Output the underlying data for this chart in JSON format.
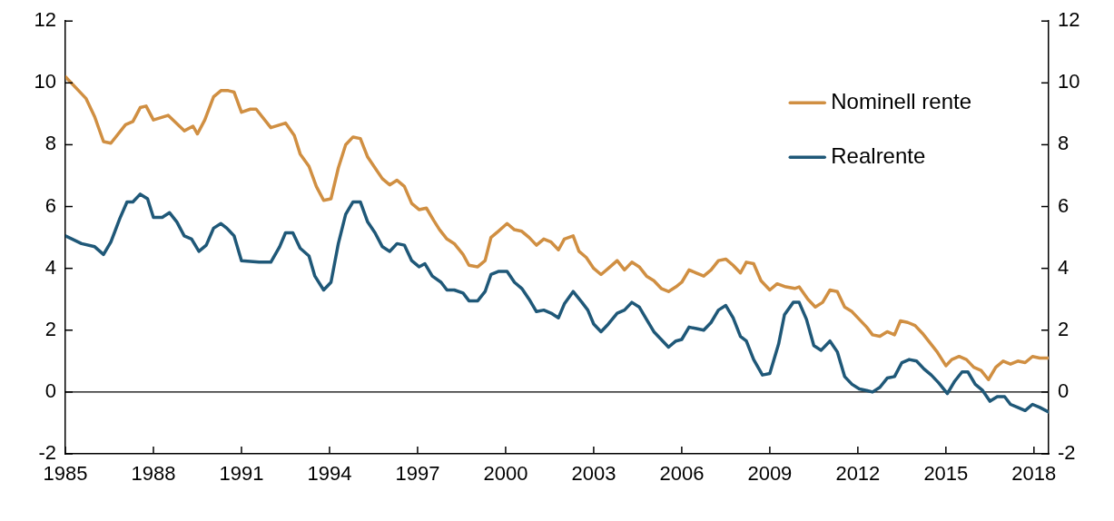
{
  "chart_data": {
    "type": "line",
    "xlim": [
      1985,
      2018.5
    ],
    "xticks": [
      1985,
      1988,
      1991,
      1994,
      1997,
      2000,
      2003,
      2006,
      2009,
      2012,
      2015,
      2018
    ],
    "ylim": [
      -2,
      12
    ],
    "yticks": [
      -2,
      0,
      2,
      4,
      6,
      8,
      10,
      12
    ],
    "y2lim": [
      -2,
      12
    ],
    "y2ticks": [
      -2,
      0,
      2,
      4,
      6,
      8,
      10,
      12
    ],
    "legend": "top right",
    "line_style": "solid",
    "ref_lines": [
      {
        "axis": "y",
        "value": 0,
        "color": "#000000"
      }
    ],
    "series": [
      {
        "name": "Nominell rente",
        "color": "#d08f42",
        "x": [
          1985.0,
          1985.7,
          1986.0,
          1986.3,
          1986.55,
          1987.05,
          1987.3,
          1987.55,
          1987.75,
          1988.0,
          1988.5,
          1989.05,
          1989.35,
          1989.5,
          1989.75,
          1990.05,
          1990.3,
          1990.55,
          1990.75,
          1991.0,
          1991.3,
          1991.5,
          1992.0,
          1992.5,
          1992.8,
          1993.0,
          1993.3,
          1993.55,
          1993.8,
          1994.05,
          1994.3,
          1994.55,
          1994.8,
          1995.05,
          1995.3,
          1995.55,
          1995.8,
          1996.05,
          1996.3,
          1996.55,
          1996.8,
          1997.05,
          1997.3,
          1997.55,
          1997.75,
          1998.0,
          1998.25,
          1998.55,
          1998.75,
          1999.05,
          1999.3,
          1999.5,
          1999.75,
          2000.05,
          2000.3,
          2000.55,
          2000.8,
          2001.05,
          2001.3,
          2001.55,
          2001.8,
          2002.0,
          2002.3,
          2002.5,
          2002.75,
          2003.0,
          2003.25,
          2003.5,
          2003.8,
          2004.05,
          2004.3,
          2004.55,
          2004.8,
          2005.05,
          2005.3,
          2005.55,
          2005.8,
          2006.0,
          2006.25,
          2006.5,
          2006.75,
          2007.0,
          2007.25,
          2007.5,
          2007.75,
          2008.0,
          2008.2,
          2008.45,
          2008.7,
          2009.0,
          2009.25,
          2009.55,
          2009.85,
          2010.0,
          2010.3,
          2010.55,
          2010.8,
          2011.05,
          2011.3,
          2011.55,
          2011.8,
          2012.05,
          2012.3,
          2012.5,
          2012.75,
          2013.0,
          2013.25,
          2013.45,
          2013.7,
          2013.95,
          2014.2,
          2014.45,
          2014.7,
          2015.0,
          2015.2,
          2015.45,
          2015.7,
          2015.95,
          2016.2,
          2016.45,
          2016.7,
          2016.95,
          2017.2,
          2017.45,
          2017.7,
          2017.95,
          2018.2,
          2018.5
        ],
        "values": [
          10.2,
          9.5,
          8.9,
          8.1,
          8.05,
          8.65,
          8.75,
          9.2,
          9.25,
          8.8,
          8.95,
          8.45,
          8.6,
          8.35,
          8.8,
          9.55,
          9.75,
          9.75,
          9.7,
          9.05,
          9.15,
          9.15,
          8.55,
          8.7,
          8.3,
          7.7,
          7.3,
          6.65,
          6.2,
          6.25,
          7.25,
          8.0,
          8.25,
          8.2,
          7.6,
          7.25,
          6.9,
          6.7,
          6.85,
          6.65,
          6.1,
          5.9,
          5.95,
          5.55,
          5.25,
          4.95,
          4.8,
          4.45,
          4.1,
          4.05,
          4.25,
          5.0,
          5.2,
          5.45,
          5.25,
          5.2,
          5.0,
          4.75,
          4.95,
          4.85,
          4.6,
          4.95,
          5.05,
          4.55,
          4.35,
          4.0,
          3.8,
          4.0,
          4.25,
          3.95,
          4.2,
          4.05,
          3.75,
          3.6,
          3.35,
          3.25,
          3.4,
          3.55,
          3.95,
          3.85,
          3.75,
          3.95,
          4.25,
          4.3,
          4.1,
          3.85,
          4.2,
          4.15,
          3.6,
          3.3,
          3.5,
          3.4,
          3.35,
          3.4,
          3.0,
          2.75,
          2.9,
          3.3,
          3.25,
          2.75,
          2.6,
          2.35,
          2.1,
          1.85,
          1.8,
          1.95,
          1.85,
          2.3,
          2.25,
          2.15,
          1.9,
          1.6,
          1.3,
          0.85,
          1.05,
          1.15,
          1.05,
          0.8,
          0.7,
          0.4,
          0.8,
          1.0,
          0.9,
          1.0,
          0.95,
          1.15,
          1.1,
          1.1
        ]
      },
      {
        "name": "Realrente",
        "color": "#1f5878",
        "x": [
          1985.0,
          1985.55,
          1986.0,
          1986.3,
          1986.55,
          1986.85,
          1987.1,
          1987.3,
          1987.55,
          1987.8,
          1988.0,
          1988.3,
          1988.55,
          1988.8,
          1989.05,
          1989.3,
          1989.55,
          1989.8,
          1990.05,
          1990.3,
          1990.5,
          1990.75,
          1991.0,
          1991.6,
          1992.0,
          1992.3,
          1992.5,
          1992.75,
          1993.0,
          1993.3,
          1993.5,
          1993.8,
          1994.05,
          1994.3,
          1994.55,
          1994.8,
          1995.05,
          1995.3,
          1995.55,
          1995.8,
          1996.05,
          1996.3,
          1996.55,
          1996.8,
          1997.05,
          1997.25,
          1997.5,
          1997.8,
          1998.0,
          1998.25,
          1998.55,
          1998.75,
          1999.05,
          1999.3,
          1999.5,
          1999.75,
          2000.05,
          2000.3,
          2000.55,
          2000.8,
          2001.05,
          2001.3,
          2001.55,
          2001.8,
          2002.0,
          2002.3,
          2002.6,
          2002.8,
          2003.0,
          2003.25,
          2003.5,
          2003.8,
          2004.05,
          2004.3,
          2004.55,
          2004.8,
          2005.05,
          2005.3,
          2005.55,
          2005.8,
          2006.0,
          2006.25,
          2006.5,
          2006.75,
          2007.0,
          2007.25,
          2007.5,
          2007.75,
          2008.0,
          2008.2,
          2008.45,
          2008.75,
          2009.0,
          2009.3,
          2009.5,
          2009.8,
          2010.0,
          2010.25,
          2010.5,
          2010.75,
          2011.05,
          2011.3,
          2011.55,
          2011.8,
          2012.05,
          2012.3,
          2012.5,
          2012.75,
          2013.0,
          2013.25,
          2013.5,
          2013.75,
          2014.0,
          2014.25,
          2014.5,
          2014.75,
          2015.05,
          2015.3,
          2015.55,
          2015.75,
          2016.0,
          2016.25,
          2016.5,
          2016.75,
          2017.0,
          2017.2,
          2017.45,
          2017.7,
          2017.95,
          2018.2,
          2018.5
        ],
        "values": [
          5.05,
          4.8,
          4.7,
          4.45,
          4.85,
          5.6,
          6.15,
          6.15,
          6.4,
          6.25,
          5.65,
          5.65,
          5.8,
          5.5,
          5.05,
          4.95,
          4.55,
          4.75,
          5.3,
          5.45,
          5.3,
          5.05,
          4.25,
          4.2,
          4.2,
          4.7,
          5.15,
          5.15,
          4.65,
          4.4,
          3.75,
          3.3,
          3.55,
          4.8,
          5.75,
          6.15,
          6.15,
          5.5,
          5.15,
          4.7,
          4.55,
          4.8,
          4.75,
          4.25,
          4.05,
          4.15,
          3.75,
          3.55,
          3.3,
          3.3,
          3.2,
          2.95,
          2.95,
          3.25,
          3.8,
          3.9,
          3.9,
          3.55,
          3.35,
          3.0,
          2.6,
          2.65,
          2.55,
          2.4,
          2.85,
          3.25,
          2.9,
          2.65,
          2.2,
          1.95,
          2.2,
          2.55,
          2.65,
          2.9,
          2.75,
          2.35,
          1.95,
          1.7,
          1.45,
          1.65,
          1.7,
          2.1,
          2.05,
          2.0,
          2.25,
          2.65,
          2.8,
          2.4,
          1.8,
          1.65,
          1.05,
          0.55,
          0.6,
          1.55,
          2.5,
          2.9,
          2.9,
          2.35,
          1.5,
          1.35,
          1.65,
          1.3,
          0.5,
          0.25,
          0.1,
          0.05,
          0.0,
          0.15,
          0.45,
          0.5,
          0.95,
          1.05,
          1.0,
          0.75,
          0.55,
          0.3,
          -0.05,
          0.35,
          0.65,
          0.65,
          0.25,
          0.05,
          -0.3,
          -0.15,
          -0.15,
          -0.4,
          -0.5,
          -0.6,
          -0.4,
          -0.5,
          -0.65
        ]
      }
    ]
  }
}
